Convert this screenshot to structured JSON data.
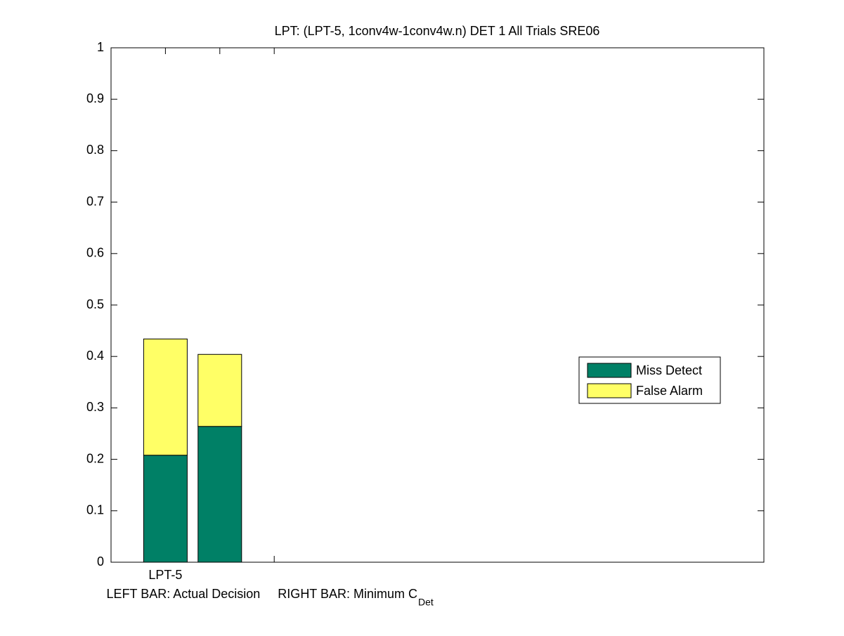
{
  "chart_data": {
    "type": "stacked-bar",
    "title": "LPT: (LPT-5, 1conv4w-1conv4w.n) DET 1 All Trials SRE06",
    "xlabel": "LEFT BAR: Actual Decision     RIGHT BAR: Minimum C",
    "xlabel_subscript": "Det",
    "categories": [
      "LPT-5",
      null,
      null
    ],
    "series": [
      {
        "name": "Miss Detect",
        "color": "#008066",
        "values": [
          0.208,
          0.264,
          null
        ]
      },
      {
        "name": "False Alarm",
        "color": "#ffff66",
        "values": [
          0.226,
          0.14,
          null
        ]
      }
    ],
    "ylim": [
      0,
      1
    ],
    "yticks": [
      0,
      0.1,
      0.2,
      0.3,
      0.4,
      0.5,
      0.6,
      0.7,
      0.8,
      0.9,
      1
    ],
    "grid": false,
    "legend": "right"
  }
}
